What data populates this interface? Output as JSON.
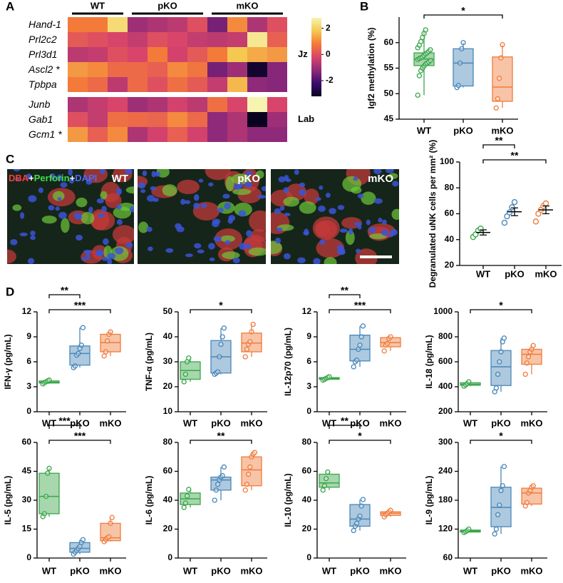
{
  "chart_data": [
    {
      "type": "heatmap",
      "panel": "A",
      "column_groups": [
        "WT",
        "WT",
        "WT",
        "pKO",
        "pKO",
        "pKO",
        "pKO",
        "mKO",
        "mKO",
        "mKO",
        "mKO"
      ],
      "sections": [
        {
          "label": "Jz",
          "rows": [
            "Hand-1",
            "Prl2c2",
            "Prl3d1",
            "Ascl2 *",
            "Tpbpa"
          ],
          "values": [
            [
              0.8,
              0.8,
              2.2,
              -1,
              -0.8,
              -0.6,
              0,
              -1.5,
              1,
              -0.8,
              0
            ],
            [
              0.2,
              0,
              -0.2,
              -0.5,
              0,
              -0.2,
              -0.5,
              -0.6,
              -0.5,
              2.5,
              0.3
            ],
            [
              -0.6,
              -0.5,
              0,
              -0.2,
              0.8,
              -0.3,
              0.2,
              0.8,
              1.8,
              1.4,
              1.2
            ],
            [
              1.2,
              1,
              0.5,
              0.5,
              0.3,
              1,
              0.7,
              -1.5,
              -1,
              -3,
              -1.3
            ],
            [
              0.8,
              0.5,
              -0.6,
              0.5,
              0,
              0.6,
              0.2,
              -0.5,
              1.6,
              -1.2,
              -1.3
            ]
          ]
        },
        {
          "label": "Lab",
          "rows": [
            "Junb",
            "Gab1",
            "Gcm1 *"
          ],
          "values": [
            [
              -0.8,
              -0.5,
              -0.2,
              -1,
              -0.8,
              -0.3,
              -0.6,
              0.6,
              -0.2,
              2.8,
              -0.2
            ],
            [
              0,
              -0.5,
              0.6,
              0.5,
              0.4,
              1,
              0.5,
              -1.2,
              -0.8,
              -3.2,
              -1
            ],
            [
              1.2,
              0.3,
              1,
              -0.8,
              -0.3,
              0.3,
              -0.3,
              -1.2,
              -0.8,
              -1.2,
              -1.2
            ]
          ]
        }
      ],
      "clim": [
        -3.2,
        2.8
      ],
      "cbar_ticks": [
        2,
        0,
        -2
      ],
      "colormap": [
        "#0a0320",
        "#3b0c6e",
        "#8f2a7a",
        "#d9456a",
        "#f47a3a",
        "#f5c850",
        "#f6f4b0"
      ]
    },
    {
      "type": "box",
      "panel": "B",
      "ylabel": "Igf2 methylation (%)",
      "ylim": [
        45,
        65
      ],
      "yticks": [
        45,
        50,
        55,
        60
      ],
      "series": [
        {
          "name": "WT",
          "color": "#3aa64a",
          "min": 49.7,
          "q1": 55.5,
          "median": 56.8,
          "q3": 58,
          "max": 62.5,
          "points": [
            49.7,
            53.5,
            54.5,
            55,
            55.4,
            55.8,
            56,
            56.2,
            56.5,
            56.7,
            56.9,
            57,
            57.2,
            57.5,
            57.8,
            58,
            58.3,
            58.6,
            59,
            59.5,
            60.2,
            61,
            61.8,
            62.5
          ]
        },
        {
          "name": "pKO",
          "color": "#4a87b8",
          "min": 51.2,
          "q1": 51.5,
          "median": 56,
          "q3": 58.8,
          "max": 60,
          "points": [
            51.2,
            51.6,
            56,
            58.8,
            60
          ]
        },
        {
          "name": "mKO",
          "color": "#f07c3c",
          "min": 47.2,
          "q1": 48.5,
          "median": 51.3,
          "q3": 57.2,
          "max": 59.6,
          "points": [
            47.2,
            49,
            53,
            57,
            59.6
          ]
        }
      ],
      "annotations": [
        {
          "from": "WT",
          "to": "mKO",
          "label": "*"
        }
      ]
    },
    {
      "type": "micrograph",
      "panel": "C",
      "stain": [
        {
          "text": "DBA",
          "color": "#ff3b3b"
        },
        {
          "text": "+",
          "color": "#ffffff"
        },
        {
          "text": "Perforin",
          "color": "#3fe04a"
        },
        {
          "text": "+",
          "color": "#ffffff"
        },
        {
          "text": "DAPI",
          "color": "#4a6bff"
        }
      ],
      "images": [
        "WT",
        "pKO",
        "mKO"
      ]
    },
    {
      "type": "dot",
      "ylabel": "Degranulated uNK cells per mm² (%)",
      "ylim": [
        20,
        100
      ],
      "yticks": [
        20,
        40,
        60,
        80,
        100
      ],
      "series": [
        {
          "name": "WT",
          "color": "#3aa64a",
          "mean": 45.5,
          "sem": 2,
          "points": [
            42,
            44,
            47,
            48.5
          ]
        },
        {
          "name": "pKO",
          "color": "#4a87b8",
          "mean": 61.5,
          "sem": 3,
          "points": [
            53,
            58,
            61,
            65,
            69
          ]
        },
        {
          "name": "mKO",
          "color": "#f07c3c",
          "mean": 63,
          "sem": 3,
          "points": [
            54,
            60,
            63,
            66,
            68
          ]
        }
      ],
      "annotations": [
        {
          "from": "WT",
          "to": "pKO",
          "label": "**"
        },
        {
          "from": "WT",
          "to": "mKO",
          "label": "**"
        }
      ]
    },
    {
      "type": "box",
      "panel": "D",
      "ylabel": "IFN-γ (pg/mL)",
      "ylim": [
        0,
        12
      ],
      "yticks": [
        0,
        3,
        6,
        9,
        12
      ],
      "series": [
        {
          "name": "WT",
          "color": "#3aa64a",
          "min": 3.35,
          "q1": 3.45,
          "median": 3.55,
          "q3": 3.7,
          "max": 3.8,
          "points": [
            3.35,
            3.5,
            3.6,
            3.7,
            3.8
          ]
        },
        {
          "name": "pKO",
          "color": "#4a87b8",
          "min": 5.3,
          "q1": 5.6,
          "median": 7,
          "q3": 7.9,
          "max": 10.1,
          "points": [
            5.3,
            5.5,
            6.8,
            7,
            7.6,
            8,
            10.1
          ]
        },
        {
          "name": "mKO",
          "color": "#f07c3c",
          "min": 6.7,
          "q1": 7.2,
          "median": 8.3,
          "q3": 9.3,
          "max": 9.7,
          "points": [
            6.7,
            7.2,
            8.5,
            9.3,
            9.6
          ]
        }
      ],
      "annotations": [
        {
          "from": "WT",
          "to": "pKO",
          "label": "**"
        },
        {
          "from": "WT",
          "to": "mKO",
          "label": "***"
        }
      ]
    },
    {
      "type": "box",
      "ylabel": "TNF-α (pg/mL)",
      "ylim": [
        10,
        50
      ],
      "yticks": [
        10,
        20,
        30,
        40,
        50
      ],
      "series": [
        {
          "name": "WT",
          "color": "#3aa64a",
          "min": 22,
          "q1": 23,
          "median": 26.5,
          "q3": 30,
          "max": 31.5,
          "points": [
            22,
            25,
            30,
            31.5
          ]
        },
        {
          "name": "pKO",
          "color": "#4a87b8",
          "min": 25,
          "q1": 25.5,
          "median": 32,
          "q3": 38.5,
          "max": 43.5,
          "points": [
            25,
            25.5,
            26,
            32,
            37,
            40,
            43.5
          ]
        },
        {
          "name": "mKO",
          "color": "#f07c3c",
          "min": 32,
          "q1": 34,
          "median": 37.5,
          "q3": 41.5,
          "max": 45,
          "points": [
            32,
            35,
            37,
            38,
            42,
            45
          ]
        }
      ],
      "annotations": [
        {
          "from": "WT",
          "to": "mKO",
          "label": "*"
        }
      ]
    },
    {
      "type": "box",
      "ylabel": "IL-12p70 (pg/mL)",
      "ylim": [
        0,
        12
      ],
      "yticks": [
        0,
        3,
        6,
        9,
        12
      ],
      "series": [
        {
          "name": "WT",
          "color": "#3aa64a",
          "min": 3.8,
          "q1": 3.9,
          "median": 4,
          "q3": 4.1,
          "max": 4.2,
          "points": [
            3.8,
            3.9,
            4,
            4.1,
            4.2
          ]
        },
        {
          "name": "pKO",
          "color": "#4a87b8",
          "min": 5.4,
          "q1": 6.1,
          "median": 7.5,
          "q3": 9.2,
          "max": 10.3,
          "points": [
            5.4,
            6,
            6.2,
            7.5,
            8,
            9,
            10.3
          ]
        },
        {
          "name": "mKO",
          "color": "#f07c3c",
          "min": 7.3,
          "q1": 7.8,
          "median": 8.3,
          "q3": 8.9,
          "max": 9,
          "points": [
            7.3,
            8,
            8.2,
            8.8,
            9
          ]
        }
      ],
      "annotations": [
        {
          "from": "WT",
          "to": "pKO",
          "label": "**"
        },
        {
          "from": "WT",
          "to": "mKO",
          "label": "***"
        }
      ]
    },
    {
      "type": "box",
      "ylabel": "IL-18 (pg/mL)",
      "ylim": [
        200,
        1000
      ],
      "yticks": [
        200,
        400,
        600,
        800,
        1000
      ],
      "series": [
        {
          "name": "WT",
          "color": "#3aa64a",
          "min": 405,
          "q1": 412,
          "median": 420,
          "q3": 432,
          "max": 440,
          "points": [
            405,
            415,
            425,
            440
          ]
        },
        {
          "name": "pKO",
          "color": "#4a87b8",
          "min": 360,
          "q1": 410,
          "median": 560,
          "q3": 690,
          "max": 790,
          "points": [
            360,
            390,
            500,
            600,
            680,
            760,
            790
          ]
        },
        {
          "name": "mKO",
          "color": "#f07c3c",
          "min": 500,
          "q1": 580,
          "median": 660,
          "q3": 700,
          "max": 730,
          "points": [
            500,
            590,
            640,
            680,
            700,
            730
          ]
        }
      ],
      "annotations": [
        {
          "from": "WT",
          "to": "mKO",
          "label": "*"
        }
      ]
    },
    {
      "type": "box",
      "ylabel": "IL-5 (pg/mL)",
      "ylim": [
        0,
        60
      ],
      "yticks": [
        0,
        15,
        30,
        45,
        60
      ],
      "series": [
        {
          "name": "WT",
          "color": "#3aa64a",
          "min": 21.5,
          "q1": 23,
          "median": 32,
          "q3": 44,
          "max": 46.5,
          "points": [
            21.5,
            23,
            32,
            44,
            46.5
          ]
        },
        {
          "name": "pKO",
          "color": "#4a87b8",
          "min": 2,
          "q1": 3,
          "median": 5,
          "q3": 8,
          "max": 9.5,
          "points": [
            2,
            3,
            4,
            5,
            6,
            8,
            9.5
          ]
        },
        {
          "name": "mKO",
          "color": "#f07c3c",
          "min": 8.5,
          "q1": 9,
          "median": 10.5,
          "q3": 18,
          "max": 21,
          "points": [
            8.5,
            9.5,
            10.5,
            11,
            18,
            21
          ]
        }
      ],
      "annotations": [
        {
          "from": "WT",
          "to": "pKO",
          "label": "***"
        },
        {
          "from": "WT",
          "to": "mKO",
          "label": "***"
        }
      ]
    },
    {
      "type": "box",
      "ylabel": "IL-6 (pg/mL)",
      "ylim": [
        0,
        80
      ],
      "yticks": [
        0,
        20,
        40,
        60,
        80
      ],
      "series": [
        {
          "name": "WT",
          "color": "#3aa64a",
          "min": 35,
          "q1": 37,
          "median": 41,
          "q3": 45,
          "max": 47.5,
          "points": [
            35,
            38,
            43,
            47.5
          ]
        },
        {
          "name": "pKO",
          "color": "#4a87b8",
          "min": 40,
          "q1": 47,
          "median": 54,
          "q3": 56,
          "max": 63,
          "points": [
            40,
            47,
            51,
            54,
            56,
            57,
            63
          ]
        },
        {
          "name": "mKO",
          "color": "#f07c3c",
          "min": 47,
          "q1": 50,
          "median": 61,
          "q3": 70,
          "max": 73,
          "points": [
            47,
            51,
            58,
            63,
            70,
            72,
            73
          ]
        }
      ],
      "annotations": [
        {
          "from": "WT",
          "to": "mKO",
          "label": "**"
        }
      ]
    },
    {
      "type": "box",
      "ylabel": "IL-10 (pg/mL)",
      "ylim": [
        0,
        80
      ],
      "yticks": [
        0,
        20,
        40,
        60,
        80
      ],
      "series": [
        {
          "name": "WT",
          "color": "#3aa64a",
          "min": 47,
          "q1": 49,
          "median": 52,
          "q3": 58,
          "max": 59.5,
          "points": [
            47,
            50,
            55,
            59.5
          ]
        },
        {
          "name": "pKO",
          "color": "#4a87b8",
          "min": 19,
          "q1": 22,
          "median": 27,
          "q3": 37,
          "max": 40.5,
          "points": [
            19,
            22,
            24,
            27,
            29,
            36,
            40.5
          ]
        },
        {
          "name": "mKO",
          "color": "#f07c3c",
          "min": 28.5,
          "q1": 29.5,
          "median": 31,
          "q3": 32,
          "max": 33,
          "points": [
            28.5,
            30,
            31,
            32,
            33
          ]
        }
      ],
      "annotations": [
        {
          "from": "WT",
          "to": "pKO",
          "label": "**"
        },
        {
          "from": "WT",
          "to": "mKO",
          "label": "*"
        }
      ]
    },
    {
      "type": "box",
      "ylabel": "IL-9 (pg/mL)",
      "ylim": [
        60,
        300
      ],
      "yticks": [
        60,
        120,
        180,
        240,
        300
      ],
      "series": [
        {
          "name": "WT",
          "color": "#3aa64a",
          "min": 113,
          "q1": 114,
          "median": 116,
          "q3": 118,
          "max": 120,
          "points": [
            113,
            115,
            117,
            120
          ]
        },
        {
          "name": "pKO",
          "color": "#4a87b8",
          "min": 110,
          "q1": 125,
          "median": 165,
          "q3": 207,
          "max": 250,
          "points": [
            110,
            120,
            150,
            170,
            200,
            210,
            250
          ]
        },
        {
          "name": "mKO",
          "color": "#f07c3c",
          "min": 168,
          "q1": 172,
          "median": 195,
          "q3": 205,
          "max": 210,
          "points": [
            168,
            175,
            195,
            200,
            207,
            210
          ]
        }
      ],
      "annotations": [
        {
          "from": "WT",
          "to": "mKO",
          "label": "*"
        }
      ]
    }
  ]
}
